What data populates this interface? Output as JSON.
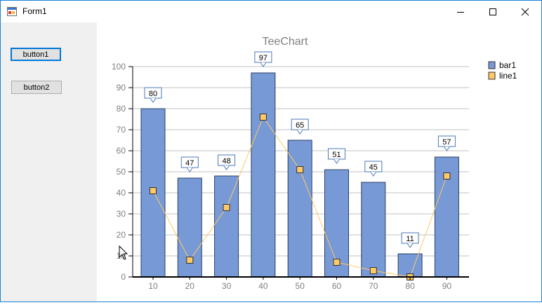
{
  "window": {
    "title": "Form1"
  },
  "buttons": {
    "button1": "button1",
    "button2": "button2"
  },
  "chart_data": {
    "type": "bar",
    "title": "TeeChart",
    "categories": [
      "10",
      "20",
      "30",
      "40",
      "50",
      "60",
      "70",
      "80",
      "90"
    ],
    "series": [
      {
        "name": "bar1",
        "type": "bar",
        "values": [
          80,
          47,
          48,
          97,
          65,
          51,
          45,
          11,
          57
        ],
        "color": "#7799d5"
      },
      {
        "name": "line1",
        "type": "line",
        "values": [
          41,
          8,
          33,
          76,
          51,
          7,
          3,
          0,
          48
        ],
        "color": "#ffc966"
      }
    ],
    "ylim": [
      0,
      100
    ],
    "yticks": [
      0,
      10,
      20,
      30,
      40,
      50,
      60,
      70,
      80,
      90,
      100
    ],
    "grid": true,
    "legend_position": "top-right"
  },
  "colors": {
    "title_text": "#808080",
    "axis_text": "#808080",
    "gridline": "#c0c0c0",
    "accent": "#0078d7"
  },
  "icons": {
    "minimize": "minimize-icon",
    "maximize": "maximize-icon",
    "close": "close-icon",
    "cursor": "mouse-cursor-icon"
  }
}
